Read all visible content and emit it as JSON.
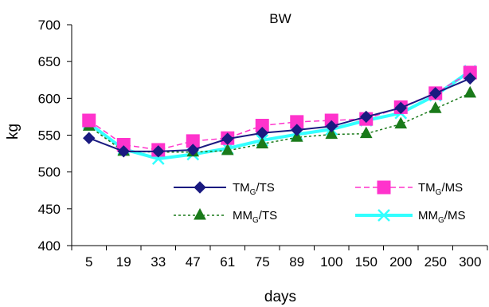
{
  "chart_data": {
    "type": "line",
    "title": "BW",
    "xlabel": "days",
    "ylabel": "kg",
    "ylim": [
      400,
      700
    ],
    "yticks": [
      400,
      450,
      500,
      550,
      600,
      650,
      700
    ],
    "categories": [
      "5",
      "19",
      "33",
      "47",
      "61",
      "75",
      "89",
      "100",
      "150",
      "200",
      "250",
      "300"
    ],
    "grid": false,
    "legend_position": "lower-right inside plot",
    "series": [
      {
        "name": "TM_G/TS",
        "legend_main": "TM",
        "legend_sub": "G",
        "legend_suffix": "/TS",
        "color": "#1a1a80",
        "marker": "diamond",
        "line_style": "solid",
        "values": [
          546,
          528,
          528,
          530,
          545,
          553,
          557,
          562,
          575,
          587,
          607,
          627
        ]
      },
      {
        "name": "TM_G/MS",
        "legend_main": "TM",
        "legend_sub": "G",
        "legend_suffix": "/MS",
        "color": "#ff33cc",
        "marker": "square",
        "line_style": "dashed",
        "values": [
          570,
          537,
          530,
          542,
          546,
          563,
          568,
          570,
          572,
          588,
          607,
          635
        ]
      },
      {
        "name": "MM_G/TS",
        "legend_main": "MM",
        "legend_sub": "G",
        "legend_suffix": "/TS",
        "color": "#1a7a1a",
        "marker": "triangle",
        "line_style": "dotted",
        "values": [
          562,
          528,
          527,
          527,
          529,
          538,
          547,
          551,
          552,
          565,
          586,
          607
        ]
      },
      {
        "name": "MM_G/MS",
        "legend_main": "MM",
        "legend_sub": "G",
        "legend_suffix": "/MS",
        "color": "#33ffff",
        "marker": "x",
        "line_style": "thick-solid",
        "values": [
          566,
          531,
          518,
          524,
          532,
          543,
          551,
          558,
          570,
          580,
          604,
          637
        ]
      }
    ]
  }
}
